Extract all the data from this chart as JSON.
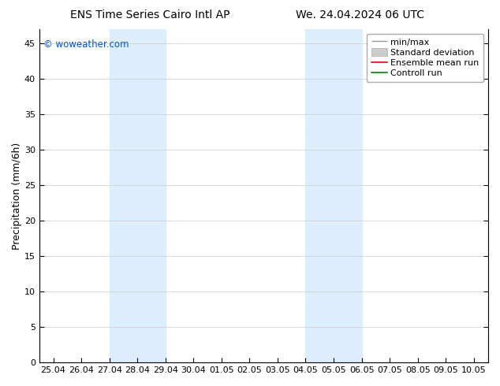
{
  "title_left": "ENS Time Series Cairo Intl AP",
  "title_right": "We. 24.04.2024 06 UTC",
  "ylabel": "Precipitation (mm/6h)",
  "watermark": "© woweather.com",
  "watermark_color": "#0055cc",
  "xtick_labels": [
    "25.04",
    "26.04",
    "27.04",
    "28.04",
    "29.04",
    "30.04",
    "01.05",
    "02.05",
    "03.05",
    "04.05",
    "05.05",
    "06.05",
    "07.05",
    "08.05",
    "09.05",
    "10.05"
  ],
  "shaded_regions": [
    {
      "xmin": 2,
      "xmax": 4,
      "color": "#ddeeff"
    },
    {
      "xmin": 9,
      "xmax": 11,
      "color": "#ddeeff"
    }
  ],
  "ylim": [
    0,
    47
  ],
  "yticks": [
    0,
    5,
    10,
    15,
    20,
    25,
    30,
    35,
    40,
    45
  ],
  "legend_entries": [
    {
      "label": "min/max"
    },
    {
      "label": "Standard deviation"
    },
    {
      "label": "Ensemble mean run"
    },
    {
      "label": "Controll run"
    }
  ],
  "minmax_color": "#999999",
  "std_color": "#cccccc",
  "ens_color": "#ff0000",
  "ctrl_color": "#008800",
  "background_color": "#ffffff",
  "grid_color": "#cccccc",
  "title_fontsize": 10,
  "label_fontsize": 9,
  "tick_fontsize": 8,
  "legend_fontsize": 8
}
